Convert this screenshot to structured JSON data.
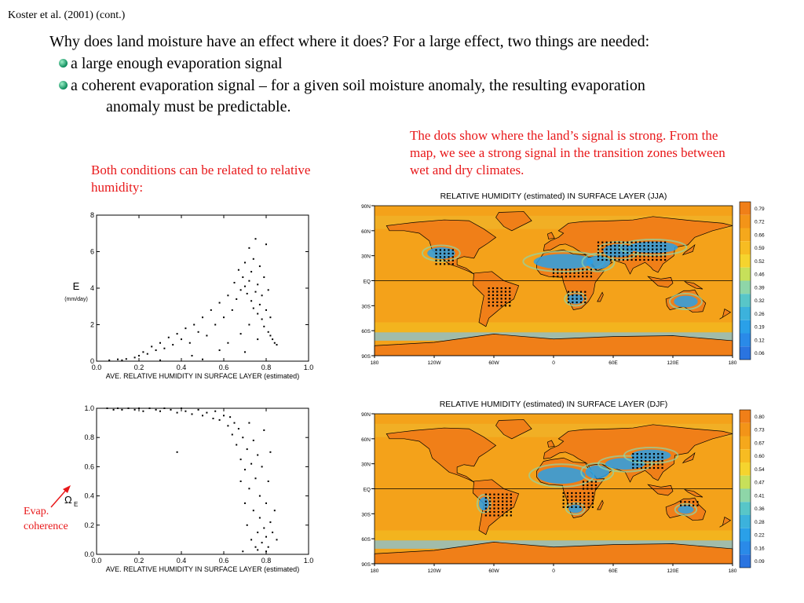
{
  "slide": {
    "header": "Koster et al. (2001) (cont.)",
    "question": "Why does land moisture have an effect where it does?  For a large effect, two things are needed:",
    "bullets": [
      "a large enough evaporation signal",
      "a coherent evaporation signal – for a given soil moisture anomaly, the resulting evaporation"
    ],
    "bullet2_cont": "anomaly must be predictable.",
    "note_right": "The dots show where the land’s signal is strong. From the map, we see a strong signal in the transition zones between wet and dry climates.",
    "note_left": "Both conditions can be related to relative humidity:",
    "evap_label_1": "Evap.",
    "evap_label_2": "coherence"
  },
  "colors": {
    "accent_red": "#e8181a",
    "bullet_green": "#0a8a5a",
    "ocean_orange": "#f5a018",
    "land_blue": "#2aa0e8"
  },
  "chart_data": [
    {
      "type": "scatter",
      "xlabel": "AVE. RELATIVE HUMIDITY IN SURFACE LAYER (estimated)",
      "ylabel": "E",
      "ylabel_unit": "(mm/day)",
      "xlim": [
        0,
        1
      ],
      "ylim": [
        0,
        8
      ],
      "xticks": [
        "0.0",
        "0.2",
        "0.4",
        "0.6",
        "0.8",
        "1.0"
      ],
      "yticks": [
        "0",
        "2",
        "4",
        "6",
        "8"
      ],
      "points": [
        [
          0.06,
          0.05
        ],
        [
          0.1,
          0.1
        ],
        [
          0.14,
          0.12
        ],
        [
          0.18,
          0.2
        ],
        [
          0.2,
          0.3
        ],
        [
          0.22,
          0.5
        ],
        [
          0.24,
          0.4
        ],
        [
          0.26,
          0.8
        ],
        [
          0.28,
          0.6
        ],
        [
          0.3,
          1.0
        ],
        [
          0.32,
          0.7
        ],
        [
          0.34,
          1.3
        ],
        [
          0.36,
          0.9
        ],
        [
          0.38,
          1.5
        ],
        [
          0.4,
          1.2
        ],
        [
          0.42,
          1.8
        ],
        [
          0.44,
          1.0
        ],
        [
          0.46,
          2.0
        ],
        [
          0.48,
          1.6
        ],
        [
          0.5,
          2.4
        ],
        [
          0.52,
          1.4
        ],
        [
          0.54,
          2.8
        ],
        [
          0.56,
          2.0
        ],
        [
          0.58,
          3.2
        ],
        [
          0.6,
          2.4
        ],
        [
          0.62,
          3.6
        ],
        [
          0.64,
          2.8
        ],
        [
          0.65,
          4.3
        ],
        [
          0.66,
          3.4
        ],
        [
          0.67,
          5.0
        ],
        [
          0.68,
          3.9
        ],
        [
          0.69,
          4.6
        ],
        [
          0.7,
          4.1
        ],
        [
          0.7,
          5.4
        ],
        [
          0.71,
          3.7
        ],
        [
          0.72,
          4.4
        ],
        [
          0.72,
          6.2
        ],
        [
          0.73,
          3.3
        ],
        [
          0.73,
          4.9
        ],
        [
          0.74,
          2.9
        ],
        [
          0.74,
          5.6
        ],
        [
          0.75,
          3.8
        ],
        [
          0.75,
          6.7
        ],
        [
          0.76,
          2.6
        ],
        [
          0.76,
          4.2
        ],
        [
          0.77,
          3.1
        ],
        [
          0.77,
          5.2
        ],
        [
          0.78,
          2.3
        ],
        [
          0.78,
          3.6
        ],
        [
          0.79,
          4.6
        ],
        [
          0.79,
          1.9
        ],
        [
          0.8,
          2.8
        ],
        [
          0.8,
          6.4
        ],
        [
          0.81,
          1.6
        ],
        [
          0.81,
          3.9
        ],
        [
          0.82,
          1.4
        ],
        [
          0.82,
          2.4
        ],
        [
          0.83,
          1.2
        ],
        [
          0.84,
          1.0
        ],
        [
          0.85,
          0.9
        ],
        [
          0.12,
          0.05
        ],
        [
          0.3,
          0.05
        ],
        [
          0.5,
          0.1
        ],
        [
          0.62,
          1.0
        ],
        [
          0.68,
          1.5
        ],
        [
          0.72,
          2.0
        ],
        [
          0.58,
          0.6
        ],
        [
          0.45,
          0.3
        ],
        [
          0.7,
          0.5
        ],
        [
          0.76,
          1.2
        ]
      ]
    },
    {
      "type": "scatter",
      "xlabel": "AVE. RELATIVE HUMIDITY IN SURFACE LAYER (estimated)",
      "ylabel": "Ω",
      "ylabel_sub": "E",
      "xlim": [
        0,
        1
      ],
      "ylim": [
        0,
        1
      ],
      "xticks": [
        "0.0",
        "0.2",
        "0.4",
        "0.6",
        "0.8",
        "1.0"
      ],
      "yticks": [
        "0.0",
        "0.2",
        "0.4",
        "0.6",
        "0.8",
        "1.0"
      ],
      "points": [
        [
          0.05,
          1.0
        ],
        [
          0.08,
          0.99
        ],
        [
          0.1,
          1.0
        ],
        [
          0.12,
          0.99
        ],
        [
          0.15,
          1.0
        ],
        [
          0.18,
          0.99
        ],
        [
          0.2,
          1.0
        ],
        [
          0.22,
          0.98
        ],
        [
          0.25,
          1.0
        ],
        [
          0.28,
          0.99
        ],
        [
          0.3,
          0.98
        ],
        [
          0.32,
          1.0
        ],
        [
          0.35,
          0.99
        ],
        [
          0.38,
          0.97
        ],
        [
          0.4,
          1.0
        ],
        [
          0.42,
          0.98
        ],
        [
          0.45,
          0.96
        ],
        [
          0.48,
          0.99
        ],
        [
          0.5,
          0.95
        ],
        [
          0.52,
          0.97
        ],
        [
          0.55,
          0.93
        ],
        [
          0.56,
          0.98
        ],
        [
          0.58,
          0.92
        ],
        [
          0.6,
          0.95
        ],
        [
          0.62,
          0.88
        ],
        [
          0.63,
          0.94
        ],
        [
          0.64,
          0.82
        ],
        [
          0.65,
          0.9
        ],
        [
          0.66,
          0.75
        ],
        [
          0.67,
          0.86
        ],
        [
          0.68,
          0.65
        ],
        [
          0.68,
          0.5
        ],
        [
          0.69,
          0.8
        ],
        [
          0.7,
          0.58
        ],
        [
          0.7,
          0.35
        ],
        [
          0.71,
          0.72
        ],
        [
          0.71,
          0.2
        ],
        [
          0.72,
          0.45
        ],
        [
          0.72,
          0.9
        ],
        [
          0.73,
          0.62
        ],
        [
          0.73,
          0.1
        ],
        [
          0.74,
          0.3
        ],
        [
          0.74,
          0.78
        ],
        [
          0.75,
          0.05
        ],
        [
          0.75,
          0.52
        ],
        [
          0.76,
          0.15
        ],
        [
          0.76,
          0.68
        ],
        [
          0.77,
          0.25
        ],
        [
          0.77,
          0.4
        ],
        [
          0.78,
          0.08
        ],
        [
          0.78,
          0.6
        ],
        [
          0.79,
          0.18
        ],
        [
          0.79,
          0.85
        ],
        [
          0.8,
          0.12
        ],
        [
          0.8,
          0.35
        ],
        [
          0.81,
          0.05
        ],
        [
          0.81,
          0.5
        ],
        [
          0.82,
          0.22
        ],
        [
          0.82,
          0.7
        ],
        [
          0.83,
          0.15
        ],
        [
          0.84,
          0.3
        ],
        [
          0.85,
          0.1
        ],
        [
          0.38,
          0.7
        ],
        [
          0.69,
          0.02
        ],
        [
          0.76,
          0.03
        ],
        [
          0.8,
          0.02
        ]
      ]
    },
    {
      "type": "heatmap",
      "title": "RELATIVE HUMIDITY (estimated) IN SURFACE LAYER (JJA)",
      "yticks": [
        "90N",
        "60N",
        "30N",
        "EQ",
        "30S",
        "60S",
        "90S"
      ],
      "xticks": [
        "180",
        "120W",
        "60W",
        "0",
        "60E",
        "120E",
        "180"
      ],
      "colorbar": [
        "0.79",
        "0.72",
        "0.66",
        "0.59",
        "0.52",
        "0.46",
        "0.39",
        "0.32",
        "0.26",
        "0.19",
        "0.12",
        "0.06"
      ]
    },
    {
      "type": "heatmap",
      "title": "RELATIVE HUMIDITY (estimated) IN SURFACE LAYER (DJF)",
      "yticks": [
        "90N",
        "60N",
        "30N",
        "EQ",
        "30S",
        "60S",
        "90S"
      ],
      "xticks": [
        "180",
        "120W",
        "60W",
        "0",
        "60E",
        "120E",
        "180"
      ],
      "colorbar": [
        "0.80",
        "0.73",
        "0.67",
        "0.60",
        "0.54",
        "0.47",
        "0.41",
        "0.36",
        "0.28",
        "0.22",
        "0.16",
        "0.09"
      ]
    }
  ]
}
